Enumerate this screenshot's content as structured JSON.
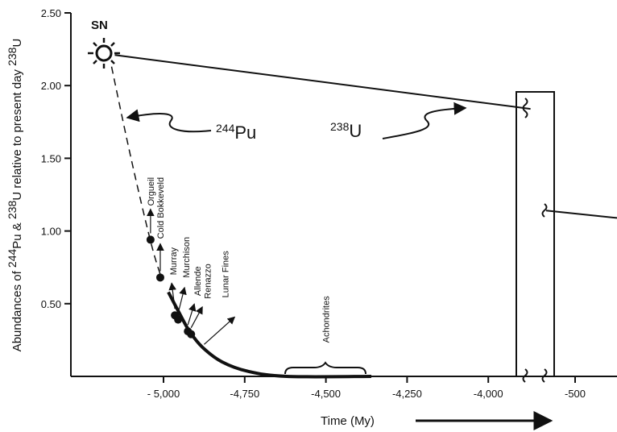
{
  "chart_data": {
    "type": "line",
    "title": "",
    "ylabel": {
      "pre": "Abundances of ",
      "sup1": "244",
      "mid1": "Pu & ",
      "sup2": "238",
      "mid2": "U relative to present day ",
      "sup3": "238",
      "post": "U"
    },
    "xlabel": "Time (My)",
    "ylim": [
      0,
      2.5
    ],
    "xlim_main": [
      -5200,
      -3900
    ],
    "x_ticks": [
      {
        "label": "- 5,000",
        "value": -5000
      },
      {
        "label": "-4,750",
        "value": -4750
      },
      {
        "label": "-4,500",
        "value": -4500
      },
      {
        "label": "-4,250",
        "value": -4250
      },
      {
        "label": "-4,000",
        "value": -4000
      },
      {
        "label": "-500",
        "value": -500
      }
    ],
    "y_ticks": [
      {
        "label": "0.50",
        "value": 0.5
      },
      {
        "label": "1.00",
        "value": 1.0
      },
      {
        "label": "1.50",
        "value": 1.5
      },
      {
        "label": "2.00",
        "value": 2.0
      },
      {
        "label": "2.50",
        "value": 2.5
      }
    ],
    "grid": false,
    "series": [
      {
        "name": "238U",
        "label_sup": "238",
        "label_base": "U",
        "points": [
          [
            -5150,
            2.21
          ],
          [
            -3870,
            1.84
          ]
        ],
        "after_break": [
          [
            -3840,
            1.14
          ],
          [
            -3620,
            1.09
          ]
        ]
      },
      {
        "name": "244Pu",
        "label_sup": "244",
        "label_base": "Pu",
        "dashed_points": [
          [
            -5160,
            2.13
          ],
          [
            -5100,
            1.5
          ],
          [
            -5040,
            0.93
          ],
          [
            -5010,
            0.7
          ]
        ],
        "solid_points": [
          [
            -4985,
            0.58
          ],
          [
            -4950,
            0.43
          ],
          [
            -4920,
            0.31
          ],
          [
            -4880,
            0.2
          ],
          [
            -4820,
            0.1
          ],
          [
            -4740,
            0.035
          ],
          [
            -4620,
            0.0
          ],
          [
            -4360,
            0.0
          ]
        ]
      }
    ],
    "samples": [
      {
        "label": "Orgueil",
        "x": -5040,
        "y": 0.94,
        "dot": true
      },
      {
        "label": "Cold Bokkeveld",
        "x": -5010,
        "y": 0.68,
        "dot": true
      },
      {
        "label": "Murray",
        "x": -4965,
        "y": 0.42,
        "dot": true
      },
      {
        "label": "Murchison",
        "x": -4955,
        "y": 0.39,
        "dot": true
      },
      {
        "label": "Allende",
        "x": -4925,
        "y": 0.31,
        "dot": true
      },
      {
        "label": "Renazzo",
        "x": -4915,
        "y": 0.29,
        "dot": true
      },
      {
        "label": "Lunar  Fines",
        "x": -4875,
        "y": 0.22,
        "dot": false
      },
      {
        "label": "Achondrites",
        "x": -4500,
        "y": 0.02,
        "dot": false
      }
    ],
    "annotation": "SN",
    "time_arrow": "→"
  }
}
